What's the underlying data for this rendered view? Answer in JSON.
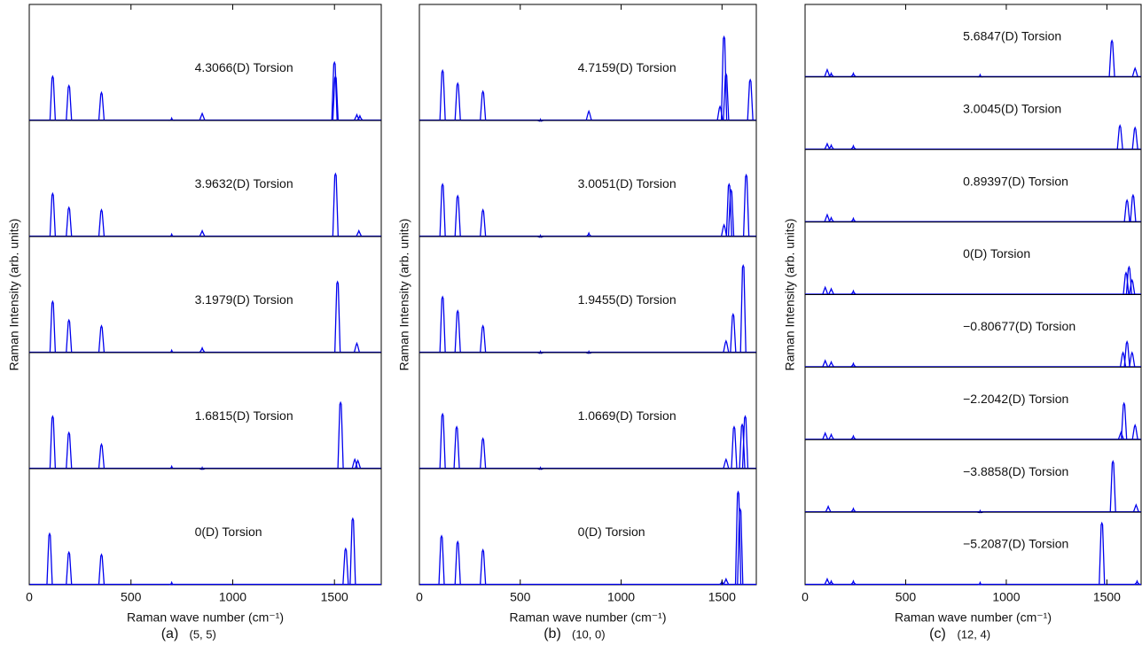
{
  "chart_data": [
    {
      "type": "line",
      "ylabel": "Raman Intensity (arb. units)",
      "xlabel": "Raman wave number (cm⁻¹)",
      "caption": "(a)",
      "subtitle": "(5, 5)",
      "xlim": [
        0,
        1730
      ],
      "xticks": [
        0,
        500,
        1000,
        1500
      ],
      "ylim": [
        0,
        1
      ],
      "color": "#0000ee",
      "series": [
        {
          "name": "4.3066(D) Torsion",
          "x": [
            115,
            195,
            355,
            700,
            850,
            1500,
            1505,
            1610,
            1625
          ],
          "values": [
            0.38,
            0.3,
            0.24,
            0.02,
            0.06,
            0.5,
            0.38,
            0.05,
            0.04
          ]
        },
        {
          "name": "3.9632(D) Torsion",
          "x": [
            115,
            195,
            355,
            700,
            850,
            1505,
            1620
          ],
          "values": [
            0.37,
            0.25,
            0.23,
            0.02,
            0.05,
            0.54,
            0.05
          ]
        },
        {
          "name": "3.1979(D) Torsion",
          "x": [
            115,
            195,
            355,
            700,
            850,
            1515,
            1610
          ],
          "values": [
            0.44,
            0.28,
            0.23,
            0.02,
            0.04,
            0.61,
            0.08
          ]
        },
        {
          "name": "1.6815(D) Torsion",
          "x": [
            115,
            195,
            355,
            700,
            850,
            1530,
            1600,
            1615
          ],
          "values": [
            0.45,
            0.31,
            0.21,
            0.02,
            0.01,
            0.57,
            0.08,
            0.07
          ]
        },
        {
          "name": "0(D) Torsion",
          "x": [
            100,
            195,
            355,
            700,
            1555,
            1590
          ],
          "values": [
            0.44,
            0.28,
            0.26,
            0.02,
            0.31,
            0.57
          ]
        }
      ]
    },
    {
      "type": "line",
      "ylabel": "Raman Intensity (arb. units)",
      "xlabel": "Raman wave number (cm⁻¹)",
      "caption": "(b)",
      "subtitle": "(10, 0)",
      "xlim": [
        0,
        1670
      ],
      "xticks": [
        0,
        500,
        1000,
        1500
      ],
      "ylim": [
        0,
        1
      ],
      "color": "#0000ee",
      "series": [
        {
          "name": "4.7159(D) Torsion",
          "x": [
            115,
            190,
            315,
            600,
            840,
            1490,
            1510,
            1520,
            1640
          ],
          "values": [
            0.43,
            0.32,
            0.25,
            0.01,
            0.08,
            0.12,
            0.72,
            0.4,
            0.35
          ]
        },
        {
          "name": "3.0051(D) Torsion",
          "x": [
            115,
            190,
            315,
            600,
            840,
            1510,
            1535,
            1545,
            1620
          ],
          "values": [
            0.45,
            0.35,
            0.23,
            0.01,
            0.03,
            0.1,
            0.45,
            0.4,
            0.53
          ]
        },
        {
          "name": "1.9455(D) Torsion",
          "x": [
            115,
            190,
            315,
            600,
            840,
            1520,
            1555,
            1605
          ],
          "values": [
            0.48,
            0.36,
            0.23,
            0.01,
            0.01,
            0.1,
            0.33,
            0.75
          ]
        },
        {
          "name": "1.0669(D) Torsion",
          "x": [
            115,
            185,
            315,
            600,
            1520,
            1560,
            1600,
            1615
          ],
          "values": [
            0.47,
            0.36,
            0.26,
            0.01,
            0.08,
            0.36,
            0.38,
            0.45
          ]
        },
        {
          "name": "0(D) Torsion",
          "x": [
            110,
            190,
            315,
            1500,
            1520,
            1580,
            1590
          ],
          "values": [
            0.42,
            0.37,
            0.3,
            0.03,
            0.05,
            0.8,
            0.65
          ]
        }
      ]
    },
    {
      "type": "line",
      "ylabel": "Raman Intensity (arb. units)",
      "xlabel": "Raman wave number (cm⁻¹)",
      "caption": "(c)",
      "subtitle": "(12, 4)",
      "xlim": [
        0,
        1670
      ],
      "xticks": [
        0,
        500,
        1000,
        1500
      ],
      "ylim": [
        0,
        1
      ],
      "color": "#0000ee",
      "series": [
        {
          "name": "5.6847(D) Torsion",
          "x": [
            110,
            130,
            240,
            870,
            1525,
            1640
          ],
          "values": [
            0.1,
            0.05,
            0.05,
            0.03,
            0.5,
            0.12
          ]
        },
        {
          "name": "3.0045(D) Torsion",
          "x": [
            110,
            130,
            240,
            1565,
            1640
          ],
          "values": [
            0.08,
            0.06,
            0.05,
            0.33,
            0.3
          ]
        },
        {
          "name": "0.89397(D) Torsion",
          "x": [
            110,
            130,
            240,
            1600,
            1630
          ],
          "values": [
            0.1,
            0.06,
            0.05,
            0.3,
            0.37
          ]
        },
        {
          "name": "0(D) Torsion",
          "x": [
            100,
            130,
            240,
            1595,
            1610,
            1625
          ],
          "values": [
            0.1,
            0.08,
            0.05,
            0.3,
            0.38,
            0.2
          ]
        },
        {
          "name": "−0.80677(D) Torsion",
          "x": [
            100,
            130,
            240,
            1580,
            1600,
            1625
          ],
          "values": [
            0.09,
            0.07,
            0.05,
            0.2,
            0.35,
            0.2
          ]
        },
        {
          "name": "−2.2042(D) Torsion",
          "x": [
            100,
            130,
            240,
            1570,
            1585,
            1640
          ],
          "values": [
            0.09,
            0.07,
            0.05,
            0.1,
            0.5,
            0.2
          ]
        },
        {
          "name": "−3.8858(D) Torsion",
          "x": [
            115,
            240,
            870,
            1530,
            1645
          ],
          "values": [
            0.08,
            0.05,
            0.02,
            0.7,
            0.1
          ]
        },
        {
          "name": "−5.2087(D) Torsion",
          "x": [
            110,
            130,
            240,
            870,
            1475,
            1650
          ],
          "values": [
            0.08,
            0.05,
            0.05,
            0.03,
            0.85,
            0.05
          ]
        }
      ]
    }
  ]
}
